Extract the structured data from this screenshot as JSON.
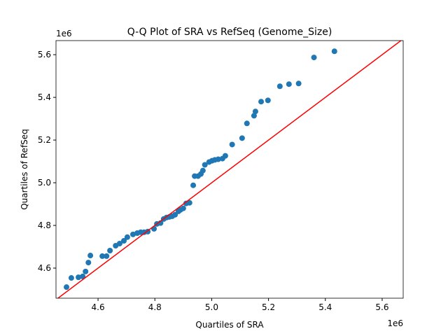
{
  "chart_data": {
    "type": "scatter",
    "title": "Q-Q Plot of SRA vs RefSeq (Genome_Size)",
    "x_label": "Quartiles of SRA",
    "y_label": "Quartiles of RefSeq",
    "x_offset_label": "1e6",
    "y_offset_label": "1e6",
    "color": "#1f77b4",
    "line_color": "#ff0000",
    "xlim": [
      4.452,
      5.674
    ],
    "ylim": [
      4.459,
      5.666
    ],
    "xticks": [
      4.6,
      4.8,
      {
        "value": 5.0,
        "label": "5.0"
      },
      5.2,
      5.4,
      5.6
    ],
    "yticks": [
      4.6,
      4.8,
      {
        "value": 5.0,
        "label": "5.0"
      },
      5.2,
      5.4,
      5.6
    ],
    "x": [
      4.489,
      4.506,
      4.531,
      4.546,
      4.556,
      4.566,
      4.573,
      4.615,
      4.63,
      4.642,
      4.662,
      4.676,
      4.691,
      4.703,
      4.723,
      4.738,
      4.75,
      4.762,
      4.775,
      4.797,
      4.807,
      4.82,
      4.831,
      4.841,
      4.851,
      4.861,
      4.871,
      4.883,
      4.89,
      4.9,
      4.91,
      4.922,
      4.935,
      4.94,
      4.952,
      4.962,
      4.969,
      4.976,
      4.991,
      5.001,
      5.011,
      5.023,
      5.038,
      5.048,
      5.072,
      5.107,
      5.124,
      5.149,
      5.154,
      5.174,
      5.198,
      5.24,
      5.272,
      5.306,
      5.36,
      5.432
    ],
    "values": [
      4.511,
      4.554,
      4.557,
      4.561,
      4.584,
      4.626,
      4.659,
      4.656,
      4.656,
      4.682,
      4.705,
      4.715,
      4.728,
      4.745,
      4.758,
      4.764,
      4.768,
      4.768,
      4.771,
      4.784,
      4.807,
      4.811,
      4.83,
      4.837,
      4.84,
      4.843,
      4.85,
      4.866,
      4.873,
      4.88,
      4.903,
      4.906,
      4.988,
      5.031,
      5.031,
      5.041,
      5.057,
      5.084,
      5.097,
      5.103,
      5.107,
      5.11,
      5.113,
      5.126,
      5.179,
      5.209,
      5.278,
      5.314,
      5.334,
      5.38,
      5.386,
      5.452,
      5.462,
      5.465,
      5.587,
      5.616
    ]
  }
}
